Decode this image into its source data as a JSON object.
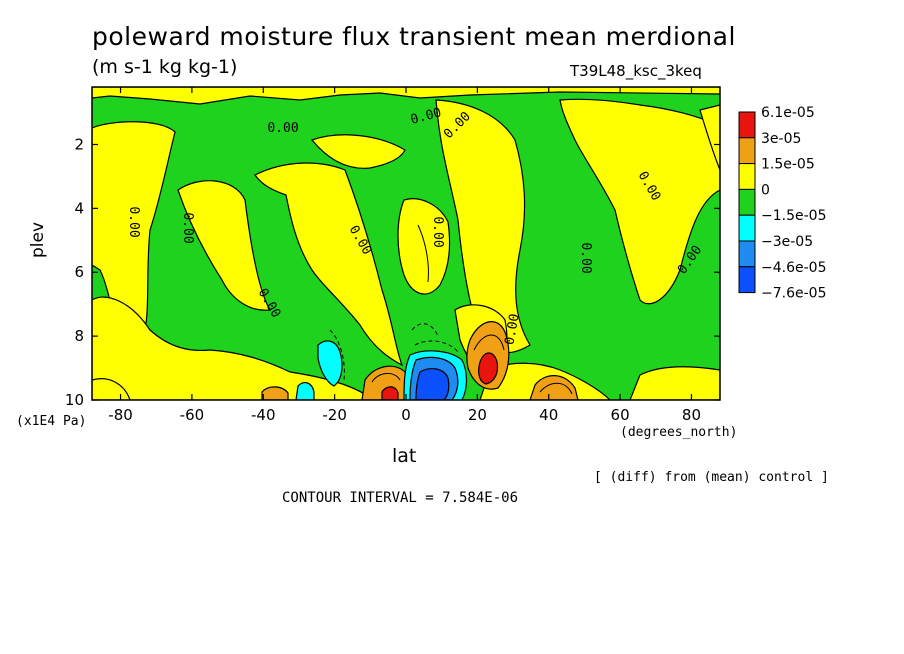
{
  "chart_data": {
    "type": "heatmap",
    "title": "poleward moisture flux transient mean merdional",
    "units": "(m s-1 kg kg-1)",
    "experiment": "T39L48_ksc_3keq",
    "xlabel": "lat",
    "xunit": "(degrees_north)",
    "ylabel": "plev",
    "yunit": "(x1E4 Pa)",
    "xlim": [
      -88,
      88
    ],
    "ylim": [
      10,
      0.2
    ],
    "x_ticks": [
      -80,
      -60,
      -40,
      -20,
      0,
      20,
      40,
      60,
      80
    ],
    "x_tick_labels": [
      "-80",
      "-60",
      "-40",
      "-20",
      "0",
      "20",
      "40",
      "60",
      "80"
    ],
    "y_ticks": [
      2,
      4,
      6,
      8,
      10
    ],
    "y_tick_labels": [
      "2",
      "4",
      "6",
      "8",
      "10"
    ],
    "contour_label": "0.00",
    "contour_interval": "CONTOUR INTERVAL = 7.584E-06",
    "note": "[ (diff) from (mean) control ]",
    "legend": {
      "placement": "right",
      "levels": [
        "6.1e-05",
        "3e-05",
        "1.5e-05",
        "0",
        "−1.5e-05",
        "−3e-05",
        "−4.6e-05",
        "−7.6e-05"
      ],
      "colors": [
        "#e8150f",
        "#f0a014",
        "#ffff00",
        "#1ed21e",
        "#00ffff",
        "#1e8cf0",
        "#0a50ff"
      ]
    },
    "features": [
      {
        "kind": "positive maximum",
        "lat": 24,
        "plev": 9.2,
        "level": "6.1e-05"
      },
      {
        "kind": "positive maximum",
        "lat": -5,
        "plev": 9.8,
        "level": "6.1e-05"
      },
      {
        "kind": "positive region",
        "lat": 43,
        "plev": 9.6,
        "level": "3e-05"
      },
      {
        "kind": "positive region",
        "lat": -40,
        "plev": 9.9,
        "level": "1.5e-05"
      },
      {
        "kind": "negative minimum",
        "lat": 8,
        "plev": 9.5,
        "level": "−7.6e-05"
      },
      {
        "kind": "negative region",
        "lat": -20,
        "plev": 8.9,
        "level": "−3e-05"
      }
    ]
  }
}
